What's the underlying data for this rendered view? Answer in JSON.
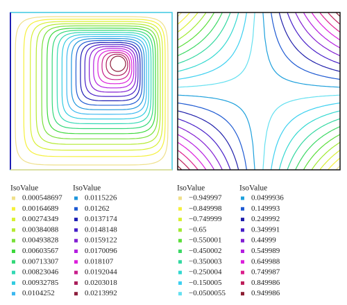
{
  "panels": [
    {
      "legends": [
        {
          "title": "IsoValue",
          "items": [
            {
              "label": "0.000548697",
              "color": "#efe08a"
            },
            {
              "label": "0.00164689",
              "color": "#f5f03c"
            },
            {
              "label": "0.00274349",
              "color": "#d8f032"
            },
            {
              "label": "0.00384088",
              "color": "#b4ea32"
            },
            {
              "label": "0.00493828",
              "color": "#78e03a"
            },
            {
              "label": "0.00603567",
              "color": "#3cd83c"
            },
            {
              "label": "0.00713307",
              "color": "#32d878"
            },
            {
              "label": "0.00823046",
              "color": "#32d8b4"
            },
            {
              "label": "0.00932785",
              "color": "#32cce0"
            },
            {
              "label": "0.0104252",
              "color": "#3cb8f0"
            }
          ]
        },
        {
          "title": "IsoValue",
          "items": [
            {
              "label": "0.0115226",
              "color": "#1e96dc"
            },
            {
              "label": "0.01262",
              "color": "#1e5ad2"
            },
            {
              "label": "0.0137174",
              "color": "#1e1eb4"
            },
            {
              "label": "0.0148148",
              "color": "#461ec8"
            },
            {
              "label": "0.0159122",
              "color": "#821ed2"
            },
            {
              "label": "0.0170096",
              "color": "#b41ee0"
            },
            {
              "label": "0.018107",
              "color": "#dc1edc"
            },
            {
              "label": "0.0192044",
              "color": "#c81e8c"
            },
            {
              "label": "0.0203018",
              "color": "#aa1e5a"
            },
            {
              "label": "0.0213992",
              "color": "#8c1e3c"
            }
          ]
        }
      ]
    },
    {
      "legends": [
        {
          "title": "IsoValue",
          "items": [
            {
              "label": "−0.949997",
              "color": "#efe08a"
            },
            {
              "label": "−0.849998",
              "color": "#f5f03c"
            },
            {
              "label": "−0.749999",
              "color": "#d8f032"
            },
            {
              "label": "−0.65",
              "color": "#a0ea32"
            },
            {
              "label": "−0.550001",
              "color": "#5ade3a"
            },
            {
              "label": "−0.450002",
              "color": "#3cd864"
            },
            {
              "label": "−0.350003",
              "color": "#32d8a0"
            },
            {
              "label": "−0.250004",
              "color": "#32d8d0"
            },
            {
              "label": "−0.150005",
              "color": "#3cd0f0"
            },
            {
              "label": "−0.0500055",
              "color": "#64e0f0"
            }
          ]
        },
        {
          "title": "IsoValue",
          "items": [
            {
              "label": "0.0499936",
              "color": "#1ea0dc"
            },
            {
              "label": "0.149993",
              "color": "#1e5ad2"
            },
            {
              "label": "0.249992",
              "color": "#1e1eaa"
            },
            {
              "label": "0.349991",
              "color": "#461ec8"
            },
            {
              "label": "0.44999",
              "color": "#821ed2"
            },
            {
              "label": "0.549989",
              "color": "#b41ee0"
            },
            {
              "label": "0.649988",
              "color": "#dc1edc"
            },
            {
              "label": "0.749987",
              "color": "#dc1e8c"
            },
            {
              "label": "0.849986",
              "color": "#be1e5a"
            },
            {
              "label": "0.949986",
              "color": "#8c1e32"
            }
          ]
        }
      ]
    }
  ]
}
